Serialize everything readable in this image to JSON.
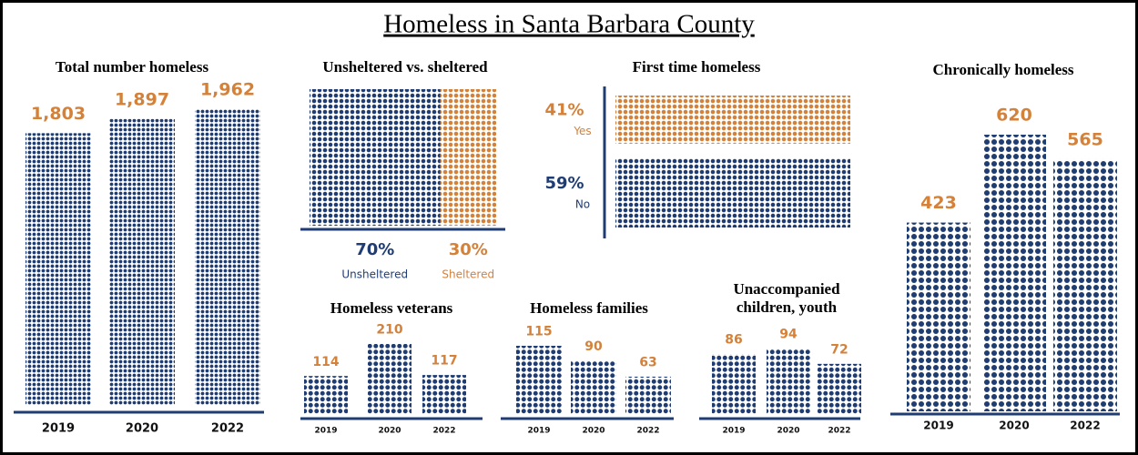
{
  "title": "Homeless in Santa Barbara County",
  "chart_data": [
    {
      "type": "bar",
      "title": "Total number homeless",
      "categories": [
        "2019",
        "2020",
        "2022"
      ],
      "values": [
        1803,
        1897,
        1962
      ],
      "value_labels": [
        "1,803",
        "1,897",
        "1,962"
      ],
      "color": "#1f3d73",
      "label_color": "#d4813a"
    },
    {
      "type": "waffle",
      "title": "Unsheltered vs. sheltered",
      "categories": [
        "Unsheltered",
        "Sheltered"
      ],
      "values": [
        70,
        30
      ],
      "value_labels": [
        "70%",
        "30%"
      ],
      "colors": [
        "#1f3d73",
        "#d4813a"
      ]
    },
    {
      "type": "hbar",
      "title": "First time homeless",
      "categories": [
        "Yes",
        "No"
      ],
      "values": [
        41,
        59
      ],
      "value_labels": [
        "41%",
        "59%"
      ],
      "colors": [
        "#d4813a",
        "#1f3d73"
      ]
    },
    {
      "type": "bar",
      "title": "Chronically homeless",
      "categories": [
        "2019",
        "2020",
        "2022"
      ],
      "values": [
        423,
        620,
        565
      ],
      "color": "#1f3d73",
      "label_color": "#d4813a"
    },
    {
      "type": "bar",
      "title": "Homeless veterans",
      "categories": [
        "2019",
        "2020",
        "2022"
      ],
      "values": [
        114,
        210,
        117
      ],
      "color": "#1f3d73",
      "label_color": "#d4813a"
    },
    {
      "type": "bar",
      "title": "Homeless families",
      "categories": [
        "2019",
        "2020",
        "2022"
      ],
      "values": [
        115,
        90,
        63
      ],
      "color": "#1f3d73",
      "label_color": "#d4813a"
    },
    {
      "type": "bar",
      "title": "Unaccompanied children, youth",
      "categories": [
        "2019",
        "2020",
        "2022"
      ],
      "values": [
        86,
        94,
        72
      ],
      "color": "#1f3d73",
      "label_color": "#d4813a"
    }
  ]
}
